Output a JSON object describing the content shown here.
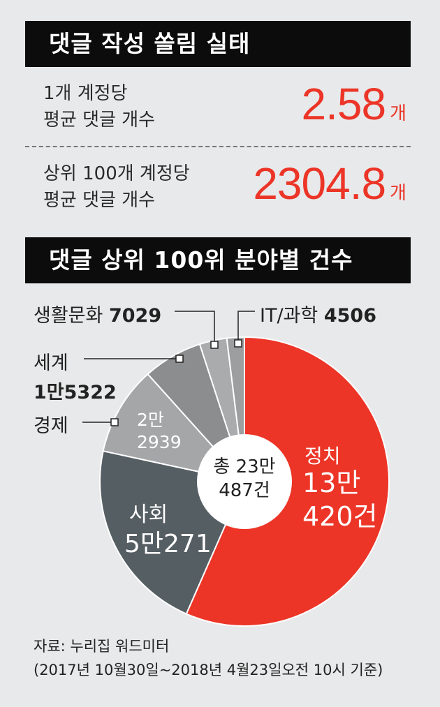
{
  "header1": "댓글 작성 쏠림 실태",
  "stat1": {
    "label_line1": "1개 계정당",
    "label_line2": "평균 댓글 개수",
    "value": "2.58",
    "unit": "개"
  },
  "stat2": {
    "label_line1": "상위 100개 계정당",
    "label_line2": "평균 댓글 개수",
    "value": "2304.8",
    "unit": "개"
  },
  "header2": "댓글 상위 100위 분야별 건수",
  "colors": {
    "politics": "#ec3527",
    "society": "#555e63",
    "economy": "#a4a6a8",
    "world": "#8b8d8f",
    "culture": "#a9abad",
    "it": "#9c9ea0",
    "accent": "#ec3527"
  },
  "chart_data": {
    "type": "pie",
    "center_line1": "총 23만",
    "center_line2": "487건",
    "slices": [
      {
        "name": "정치",
        "value": 130420,
        "value_line1": "13만",
        "value_line2": "420건"
      },
      {
        "name": "사회",
        "value": 50271,
        "value_text": "5만271"
      },
      {
        "name": "경제",
        "value": 22939,
        "value_line1": "2만",
        "value_line2": "2939"
      },
      {
        "name": "세계",
        "value": 15322,
        "value_text": "1만5322"
      },
      {
        "name": "생활문화",
        "value": 7029,
        "value_text": "7029"
      },
      {
        "name": "IT/과학",
        "value": 4506,
        "value_text": "4506"
      }
    ]
  },
  "source_line1": "자료: 누리집 워드미터",
  "source_line2": "(2017년 10월30일~2018년 4월23일오전 10시 기준)"
}
